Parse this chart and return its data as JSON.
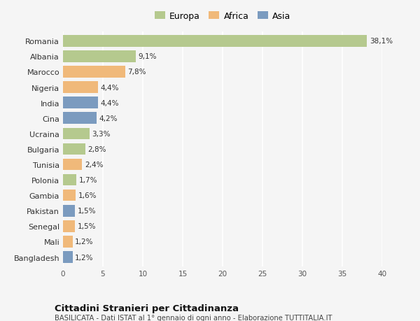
{
  "countries": [
    "Romania",
    "Albania",
    "Marocco",
    "Nigeria",
    "India",
    "Cina",
    "Ucraina",
    "Bulgaria",
    "Tunisia",
    "Polonia",
    "Gambia",
    "Pakistan",
    "Senegal",
    "Mali",
    "Bangladesh"
  ],
  "values": [
    38.1,
    9.1,
    7.8,
    4.4,
    4.4,
    4.2,
    3.3,
    2.8,
    2.4,
    1.7,
    1.6,
    1.5,
    1.5,
    1.2,
    1.2
  ],
  "labels": [
    "38,1%",
    "9,1%",
    "7,8%",
    "4,4%",
    "4,4%",
    "4,2%",
    "3,3%",
    "2,8%",
    "2,4%",
    "1,7%",
    "1,6%",
    "1,5%",
    "1,5%",
    "1,2%",
    "1,2%"
  ],
  "continents": [
    "Europa",
    "Europa",
    "Africa",
    "Africa",
    "Asia",
    "Asia",
    "Europa",
    "Europa",
    "Africa",
    "Europa",
    "Africa",
    "Asia",
    "Africa",
    "Africa",
    "Asia"
  ],
  "colors": {
    "Europa": "#b5c98e",
    "Africa": "#f0b97a",
    "Asia": "#7b9bbf"
  },
  "legend_labels": [
    "Europa",
    "Africa",
    "Asia"
  ],
  "legend_colors": [
    "#b5c98e",
    "#f0b97a",
    "#7b9bbf"
  ],
  "xlim": [
    0,
    40
  ],
  "xticks": [
    0,
    5,
    10,
    15,
    20,
    25,
    30,
    35,
    40
  ],
  "title": "Cittadini Stranieri per Cittadinanza",
  "subtitle": "BASILICATA - Dati ISTAT al 1° gennaio di ogni anno - Elaborazione TUTTITALIA.IT",
  "bg_color": "#f5f5f5",
  "grid_color": "#ffffff",
  "bar_height": 0.75
}
